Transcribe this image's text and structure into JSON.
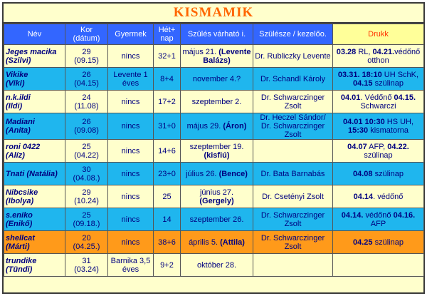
{
  "title": "KISMAMIK",
  "headers": {
    "nev": "Név",
    "kor": "Kor (dátum)",
    "gyermek": "Gyermek",
    "het": "Hét+ nap",
    "szules": "Szülés várható i.",
    "szulesze": "Szülésze / kezelőo.",
    "drukk": "Drukk"
  },
  "rows": [
    {
      "nick": "Jeges macika",
      "real": "(Szilvi)",
      "kor": "29",
      "datum": "(09.15)",
      "gyermek": "nincs",
      "het": "32+1",
      "szules_a": "május 21.",
      "szules_b": "(Levente Balázs)",
      "orvos": "Dr. Rubliczky Levente",
      "drukk_1": "03.28",
      "drukk_2": " RL, ",
      "drukk_3": "04.21.",
      "drukk_4": "védőnő otthon",
      "color": "y"
    },
    {
      "nick": "Vikike",
      "real": "(Viki)",
      "kor": "26",
      "datum": "(04.15)",
      "gyermek": "Levente 1 éves",
      "het": "8+4",
      "szules_a": "november 4.?",
      "szules_b": "",
      "orvos": "Dr. Schandl Károly",
      "drukk_1": "03.31. 18:10",
      "drukk_2": " UH SchK, ",
      "drukk_3": "04.15",
      "drukk_4": " szülinap",
      "color": "b"
    },
    {
      "nick": "n.k.ildi",
      "real": "(Ildi)",
      "kor": "24",
      "datum": "(11.08)",
      "gyermek": "nincs",
      "het": "17+2",
      "szules_a": "szeptember 2.",
      "szules_b": "",
      "orvos": "Dr. Schwarczinger Zsolt",
      "drukk_1": "04.01",
      "drukk_2": ". Védőnő ",
      "drukk_3": "04.15.",
      "drukk_4": " Schwarczi",
      "color": "y"
    },
    {
      "nick": "Madiani",
      "real": "(Anita)",
      "kor": "26",
      "datum": "(09.08)",
      "gyermek": "nincs",
      "het": "31+0",
      "szules_a": "május 29.",
      "szules_b": "(Áron)",
      "orvos": "Dr. Heczel Sándor/ Dr. Schwarczinger Zsolt",
      "drukk_1": "04.01 10:30",
      "drukk_2": " HS UH, ",
      "drukk_3": "15:30",
      "drukk_4": " kismatorna",
      "color": "b"
    },
    {
      "nick": "roni 0422",
      "real": "(Alíz)",
      "kor": "25",
      "datum": "(04.22)",
      "gyermek": "nincs",
      "het": "14+6",
      "szules_a": "szeptember 19.",
      "szules_b": "(kisfiú)",
      "orvos": "",
      "drukk_1": "04.07",
      "drukk_2": " AFP, ",
      "drukk_3": "04.22.",
      "drukk_4": " szülinap",
      "color": "y"
    },
    {
      "nick": "Tnati (Natália)",
      "real": "",
      "kor": "30",
      "datum": "(04.08.)",
      "gyermek": "nincs",
      "het": "23+0",
      "szules_a": "július 26.",
      "szules_b": "(Bence)",
      "orvos": "Dr. Bata Barnabás",
      "drukk_1": "04.08",
      "drukk_2": " szülinap",
      "drukk_3": "",
      "drukk_4": "",
      "color": "b"
    },
    {
      "nick": "Nibcsike",
      "real": "(Ibolya)",
      "kor": "29",
      "datum": "(10.24)",
      "gyermek": "nincs",
      "het": "25",
      "szules_a": "június 27.",
      "szules_b": "(Gergely)",
      "orvos": "Dr. Csetényi Zsolt",
      "drukk_1": "04.14",
      "drukk_2": ". védőnő",
      "drukk_3": "",
      "drukk_4": "",
      "color": "y"
    },
    {
      "nick": "s.eniko",
      "real": "(Enikő)",
      "kor": "25",
      "datum": "(09.18.)",
      "gyermek": "nincs",
      "het": "14",
      "szules_a": "szeptember 26.",
      "szules_b": "",
      "orvos": "Dr. Schwarczinger Zsolt",
      "drukk_1": "04.14.",
      "drukk_2": " védőnő ",
      "drukk_3": "04.16.",
      "drukk_4": " AFP",
      "color": "b"
    },
    {
      "nick": "shellcat",
      "real": "(Márti)",
      "kor": "20",
      "datum": "(04.25.)",
      "gyermek": "nincs",
      "het": "38+6",
      "szules_a": "április 5.",
      "szules_b": "(Attila)",
      "orvos": "Dr. Schwarczinger Zsolt",
      "drukk_1": "04.25",
      "drukk_2": " szülinap",
      "drukk_3": "",
      "drukk_4": "",
      "color": "o"
    },
    {
      "nick": "trundike",
      "real": "(Tündi)",
      "kor": "31",
      "datum": "(03.24)",
      "gyermek": "Barnika 3,5 éves",
      "het": "9+2",
      "szules_a": "október 28.",
      "szules_b": "",
      "orvos": "",
      "drukk_1": "",
      "drukk_2": "",
      "drukk_3": "",
      "drukk_4": "",
      "color": "y"
    }
  ]
}
